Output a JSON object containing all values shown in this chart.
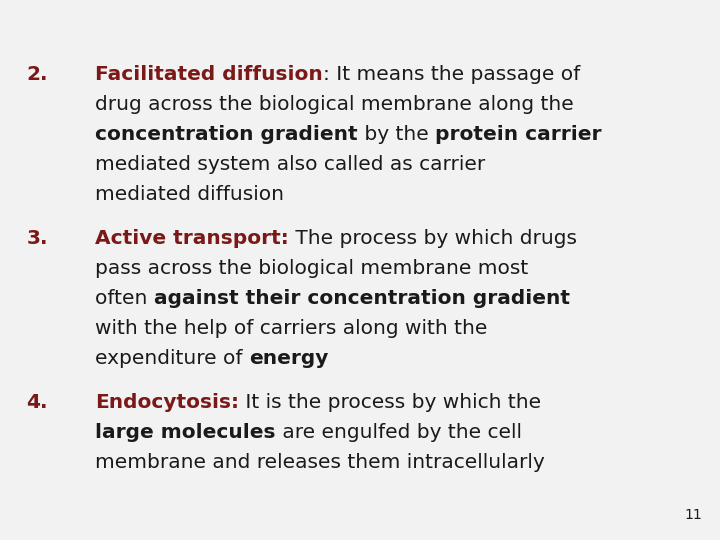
{
  "background_color": "#f2f2f2",
  "text_color_dark": "#1a1a1a",
  "text_color_red": "#7B1818",
  "slide_number": "11",
  "font_size_main": 14.5,
  "font_size_number": 10,
  "items": [
    {
      "number": "2.",
      "number_color": "#7B1818",
      "lines": [
        {
          "parts": [
            {
              "text": "Facilitated diffusion",
              "bold": true,
              "color": "#7B1818"
            },
            {
              "text": ": It means the passage of",
              "bold": false,
              "color": "#1a1a1a"
            }
          ]
        },
        {
          "parts": [
            {
              "text": "drug across the biological membrane along the",
              "bold": false,
              "color": "#1a1a1a"
            }
          ]
        },
        {
          "parts": [
            {
              "text": "concentration gradient",
              "bold": true,
              "color": "#1a1a1a"
            },
            {
              "text": " by the ",
              "bold": false,
              "color": "#1a1a1a"
            },
            {
              "text": "protein carrier",
              "bold": true,
              "color": "#1a1a1a"
            }
          ]
        },
        {
          "parts": [
            {
              "text": "mediated system also called as carrier",
              "bold": false,
              "color": "#1a1a1a"
            }
          ]
        },
        {
          "parts": [
            {
              "text": "mediated diffusion",
              "bold": false,
              "color": "#1a1a1a"
            }
          ]
        }
      ]
    },
    {
      "number": "3.",
      "number_color": "#7B1818",
      "lines": [
        {
          "parts": [
            {
              "text": "Active transport:",
              "bold": true,
              "color": "#7B1818"
            },
            {
              "text": " The process by which drugs",
              "bold": false,
              "color": "#1a1a1a"
            }
          ]
        },
        {
          "parts": [
            {
              "text": "pass across the biological membrane most",
              "bold": false,
              "color": "#1a1a1a"
            }
          ]
        },
        {
          "parts": [
            {
              "text": "often ",
              "bold": false,
              "color": "#1a1a1a"
            },
            {
              "text": "against their concentration gradient",
              "bold": true,
              "color": "#1a1a1a"
            }
          ]
        },
        {
          "parts": [
            {
              "text": "with the help of carriers along with the",
              "bold": false,
              "color": "#1a1a1a"
            }
          ]
        },
        {
          "parts": [
            {
              "text": "expenditure of ",
              "bold": false,
              "color": "#1a1a1a"
            },
            {
              "text": "energy",
              "bold": true,
              "color": "#1a1a1a"
            }
          ]
        }
      ]
    },
    {
      "number": "4.",
      "number_color": "#7B1818",
      "lines": [
        {
          "parts": [
            {
              "text": "Endocytosis:",
              "bold": true,
              "color": "#7B1818"
            },
            {
              "text": " It is the process by which the",
              "bold": false,
              "color": "#1a1a1a"
            }
          ]
        },
        {
          "parts": [
            {
              "text": "large molecules",
              "bold": true,
              "color": "#1a1a1a"
            },
            {
              "text": " are engulfed by the cell",
              "bold": false,
              "color": "#1a1a1a"
            }
          ]
        },
        {
          "parts": [
            {
              "text": "membrane and releases them intracellularly",
              "bold": false,
              "color": "#1a1a1a"
            }
          ]
        }
      ]
    }
  ]
}
